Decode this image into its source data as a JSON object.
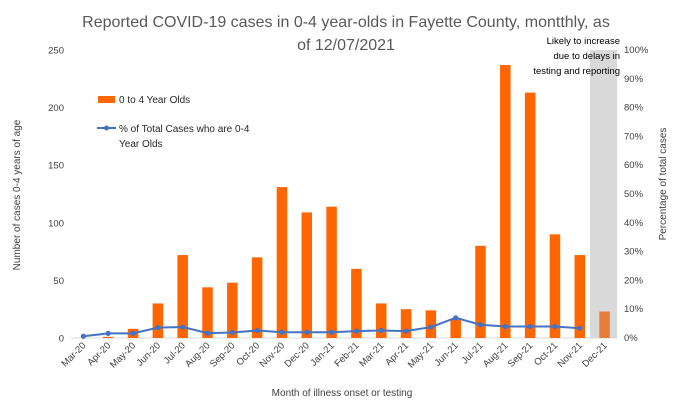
{
  "chart_data": {
    "type": "bar",
    "title_lines": [
      "Reported COVID-19 cases in 0-4 year-olds in Fayette County, montthly, as",
      "of 12/07/2021"
    ],
    "xlabel": "Month of illness onset or testing",
    "ylabel": "Number of cases 0-4 years of age",
    "y2label": "Percentage of total cases",
    "ylim": [
      0,
      250
    ],
    "y2lim": [
      0,
      100
    ],
    "yticks": [
      "0",
      "50",
      "100",
      "150",
      "200",
      "250"
    ],
    "y2ticks": [
      "0%",
      "10%",
      "20%",
      "30%",
      "40%",
      "50%",
      "60%",
      "70%",
      "80%",
      "90%",
      "100%"
    ],
    "categories": [
      "Mar-20",
      "Apr-20",
      "May-20",
      "Jun-20",
      "Jul-20",
      "Aug-20",
      "Sep-20",
      "Oct-20",
      "Nov-20",
      "Dec-20",
      "Jan-21",
      "Feb-21",
      "Mar-21",
      "Apr-21",
      "May-21",
      "Jun-21",
      "Jul-21",
      "Aug-21",
      "Sep-21",
      "Oct-21",
      "Nov-21",
      "Dec-21"
    ],
    "series": [
      {
        "name": "0 to 4 Year Olds",
        "kind": "bar",
        "axis": "left",
        "color": "#FF6600",
        "values": [
          0,
          1,
          8,
          30,
          72,
          44,
          48,
          70,
          131,
          109,
          114,
          60,
          30,
          25,
          24,
          17,
          80,
          237,
          213,
          90,
          72,
          23
        ]
      },
      {
        "name_lines": [
          "% of Total Cases who are 0-4",
          "Year Olds"
        ],
        "kind": "line",
        "axis": "right",
        "color": "#4472C4",
        "values": [
          0.6,
          1.6,
          1.6,
          3.6,
          3.8,
          1.7,
          1.9,
          2.6,
          2.0,
          2.0,
          2.0,
          2.4,
          2.6,
          2.4,
          3.8,
          7.0,
          4.6,
          4.0,
          4.0,
          4.0,
          3.4,
          null
        ]
      }
    ],
    "annotation": {
      "lines": [
        "Likely to increase",
        "due to delays in",
        "testing and reporting"
      ],
      "highlight_category": "Dec-21",
      "highlight_bar_color": "#E87D38",
      "shade_color": "#D9D9D9"
    },
    "legend_placement": "top-left",
    "grid": false
  }
}
